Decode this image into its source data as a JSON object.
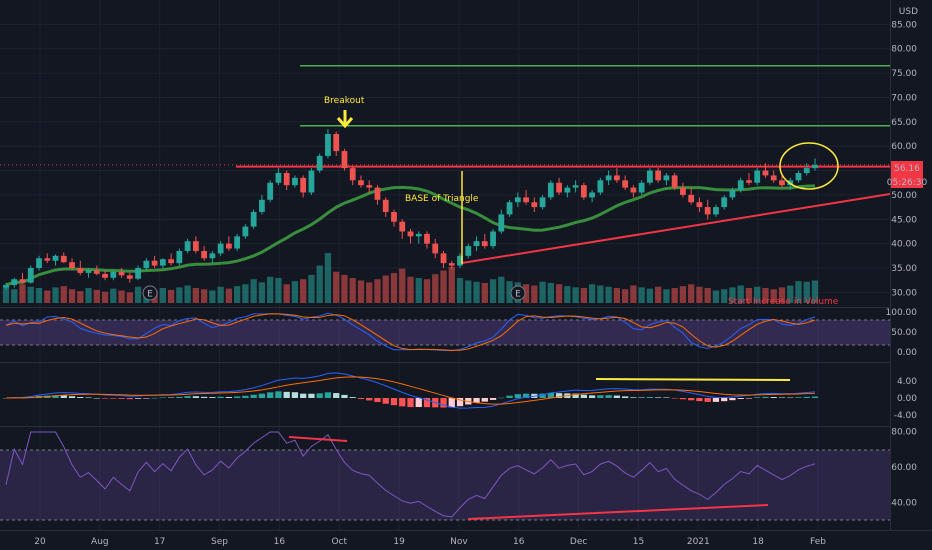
{
  "chart_data": {
    "type": "candlestick",
    "currency_label": "USD",
    "price_tag": "56.16",
    "countdown_tag": "05:26:30",
    "main_ylim": [
      27,
      90
    ],
    "price_ticks": [
      "85.00",
      "80.00",
      "75.00",
      "70.00",
      "65.00",
      "60.00",
      "55.00",
      "50.00",
      "45.00",
      "40.00",
      "35.00",
      "30.00"
    ],
    "stoch_ticks": [
      "100.00",
      "50.00",
      "0.00"
    ],
    "macd_ticks": [
      "4.00",
      "0.00",
      "-4.00"
    ],
    "rsi_ticks": [
      "80.00",
      "60.00",
      "40.00"
    ],
    "x_ticks": [
      "20",
      "Aug",
      "17",
      "Sep",
      "16",
      "Oct",
      "19",
      "Nov",
      "16",
      "Dec",
      "15",
      "2021",
      "18",
      "Feb"
    ],
    "annotations": {
      "breakout": "Breakout",
      "base": "BASE of Triangle",
      "volume": "Start Increase in Volume"
    },
    "earnings_marker": "E",
    "horizontal_levels": [
      {
        "label": "resistance-upper",
        "value": 76.5,
        "color": "#4caf50"
      },
      {
        "label": "resistance-breakout",
        "value": 64.2,
        "color": "#4caf50"
      },
      {
        "label": "resistance-triangle",
        "value": 55.8,
        "color": "#f23645"
      }
    ],
    "candles": [
      {
        "o": 31.0,
        "h": 32.0,
        "l": 30.5,
        "c": 31.5
      },
      {
        "o": 31.5,
        "h": 33.0,
        "l": 31.0,
        "c": 32.7
      },
      {
        "o": 32.7,
        "h": 34.0,
        "l": 32.0,
        "c": 32.0
      },
      {
        "o": 32.0,
        "h": 35.5,
        "l": 31.8,
        "c": 35.0
      },
      {
        "o": 35.0,
        "h": 37.5,
        "l": 34.5,
        "c": 37.0
      },
      {
        "o": 37.0,
        "h": 38.0,
        "l": 36.0,
        "c": 36.5
      },
      {
        "o": 36.5,
        "h": 37.8,
        "l": 35.5,
        "c": 37.5
      },
      {
        "o": 37.5,
        "h": 38.2,
        "l": 36.0,
        "c": 36.2
      },
      {
        "o": 36.2,
        "h": 37.0,
        "l": 34.5,
        "c": 35.0
      },
      {
        "o": 35.0,
        "h": 36.5,
        "l": 33.5,
        "c": 34.0
      },
      {
        "o": 34.0,
        "h": 35.0,
        "l": 33.0,
        "c": 34.5
      },
      {
        "o": 34.5,
        "h": 35.5,
        "l": 33.5,
        "c": 33.8
      },
      {
        "o": 33.8,
        "h": 34.5,
        "l": 32.5,
        "c": 33.0
      },
      {
        "o": 33.0,
        "h": 34.5,
        "l": 32.5,
        "c": 34.2
      },
      {
        "o": 34.2,
        "h": 35.0,
        "l": 33.0,
        "c": 33.5
      },
      {
        "o": 33.5,
        "h": 34.0,
        "l": 32.0,
        "c": 32.8
      },
      {
        "o": 32.8,
        "h": 35.5,
        "l": 32.5,
        "c": 35.0
      },
      {
        "o": 35.0,
        "h": 37.0,
        "l": 34.5,
        "c": 36.5
      },
      {
        "o": 36.5,
        "h": 37.5,
        "l": 35.0,
        "c": 35.5
      },
      {
        "o": 35.5,
        "h": 37.0,
        "l": 35.0,
        "c": 36.8
      },
      {
        "o": 36.8,
        "h": 38.0,
        "l": 35.5,
        "c": 36.0
      },
      {
        "o": 36.0,
        "h": 39.0,
        "l": 35.5,
        "c": 38.5
      },
      {
        "o": 38.5,
        "h": 41.0,
        "l": 38.0,
        "c": 40.5
      },
      {
        "o": 40.5,
        "h": 41.5,
        "l": 38.0,
        "c": 38.5
      },
      {
        "o": 38.5,
        "h": 39.5,
        "l": 36.5,
        "c": 37.0
      },
      {
        "o": 37.0,
        "h": 38.5,
        "l": 36.0,
        "c": 38.0
      },
      {
        "o": 38.0,
        "h": 40.5,
        "l": 37.5,
        "c": 40.0
      },
      {
        "o": 40.0,
        "h": 41.5,
        "l": 38.5,
        "c": 39.0
      },
      {
        "o": 39.0,
        "h": 42.0,
        "l": 38.5,
        "c": 41.5
      },
      {
        "o": 41.5,
        "h": 44.0,
        "l": 41.0,
        "c": 43.5
      },
      {
        "o": 43.5,
        "h": 47.0,
        "l": 43.0,
        "c": 46.5
      },
      {
        "o": 46.5,
        "h": 50.0,
        "l": 46.0,
        "c": 49.0
      },
      {
        "o": 49.0,
        "h": 53.0,
        "l": 48.5,
        "c": 52.5
      },
      {
        "o": 52.5,
        "h": 55.5,
        "l": 52.0,
        "c": 54.5
      },
      {
        "o": 54.5,
        "h": 55.0,
        "l": 51.0,
        "c": 52.0
      },
      {
        "o": 52.0,
        "h": 54.0,
        "l": 51.5,
        "c": 53.5
      },
      {
        "o": 53.5,
        "h": 54.0,
        "l": 49.5,
        "c": 50.5
      },
      {
        "o": 50.5,
        "h": 55.5,
        "l": 50.0,
        "c": 55.0
      },
      {
        "o": 55.0,
        "h": 58.5,
        "l": 54.5,
        "c": 58.0
      },
      {
        "o": 58.0,
        "h": 63.5,
        "l": 57.5,
        "c": 62.5
      },
      {
        "o": 62.5,
        "h": 63.0,
        "l": 58.0,
        "c": 59.0
      },
      {
        "o": 59.0,
        "h": 59.5,
        "l": 55.0,
        "c": 55.5
      },
      {
        "o": 55.5,
        "h": 56.0,
        "l": 52.0,
        "c": 53.0
      },
      {
        "o": 53.0,
        "h": 54.0,
        "l": 51.5,
        "c": 52.0
      },
      {
        "o": 52.0,
        "h": 53.0,
        "l": 50.5,
        "c": 51.5
      },
      {
        "o": 51.5,
        "h": 52.0,
        "l": 48.0,
        "c": 49.0
      },
      {
        "o": 49.0,
        "h": 49.5,
        "l": 45.5,
        "c": 46.5
      },
      {
        "o": 46.5,
        "h": 47.0,
        "l": 43.5,
        "c": 44.5
      },
      {
        "o": 44.5,
        "h": 45.0,
        "l": 41.0,
        "c": 42.5
      },
      {
        "o": 42.5,
        "h": 43.0,
        "l": 40.0,
        "c": 41.5
      },
      {
        "o": 41.5,
        "h": 42.5,
        "l": 40.0,
        "c": 42.0
      },
      {
        "o": 42.0,
        "h": 42.5,
        "l": 39.0,
        "c": 40.0
      },
      {
        "o": 40.0,
        "h": 41.0,
        "l": 37.0,
        "c": 38.0
      },
      {
        "o": 38.0,
        "h": 38.5,
        "l": 35.0,
        "c": 36.0
      },
      {
        "o": 36.0,
        "h": 36.5,
        "l": 34.8,
        "c": 35.5
      },
      {
        "o": 35.5,
        "h": 38.0,
        "l": 35.0,
        "c": 37.5
      },
      {
        "o": 37.5,
        "h": 40.0,
        "l": 37.0,
        "c": 39.5
      },
      {
        "o": 39.5,
        "h": 41.5,
        "l": 38.5,
        "c": 40.5
      },
      {
        "o": 40.5,
        "h": 42.0,
        "l": 39.0,
        "c": 39.5
      },
      {
        "o": 39.5,
        "h": 43.0,
        "l": 39.0,
        "c": 42.5
      },
      {
        "o": 42.5,
        "h": 47.0,
        "l": 42.0,
        "c": 46.0
      },
      {
        "o": 46.0,
        "h": 49.0,
        "l": 45.5,
        "c": 48.5
      },
      {
        "o": 48.5,
        "h": 50.5,
        "l": 47.5,
        "c": 49.5
      },
      {
        "o": 49.5,
        "h": 51.0,
        "l": 48.0,
        "c": 48.5
      },
      {
        "o": 48.5,
        "h": 49.5,
        "l": 46.5,
        "c": 47.5
      },
      {
        "o": 47.5,
        "h": 50.0,
        "l": 47.0,
        "c": 49.5
      },
      {
        "o": 49.5,
        "h": 53.0,
        "l": 49.0,
        "c": 52.5
      },
      {
        "o": 52.5,
        "h": 53.5,
        "l": 50.0,
        "c": 50.5
      },
      {
        "o": 50.5,
        "h": 52.0,
        "l": 49.5,
        "c": 51.5
      },
      {
        "o": 51.5,
        "h": 53.0,
        "l": 50.5,
        "c": 52.0
      },
      {
        "o": 52.0,
        "h": 52.5,
        "l": 49.0,
        "c": 49.5
      },
      {
        "o": 49.5,
        "h": 51.0,
        "l": 48.5,
        "c": 50.5
      },
      {
        "o": 50.5,
        "h": 53.5,
        "l": 50.0,
        "c": 53.0
      },
      {
        "o": 53.0,
        "h": 55.0,
        "l": 52.0,
        "c": 54.0
      },
      {
        "o": 54.0,
        "h": 55.5,
        "l": 52.5,
        "c": 53.0
      },
      {
        "o": 53.0,
        "h": 54.0,
        "l": 51.0,
        "c": 51.5
      },
      {
        "o": 51.5,
        "h": 52.0,
        "l": 49.5,
        "c": 50.5
      },
      {
        "o": 50.5,
        "h": 53.0,
        "l": 50.0,
        "c": 52.5
      },
      {
        "o": 52.5,
        "h": 55.5,
        "l": 52.0,
        "c": 55.0
      },
      {
        "o": 55.0,
        "h": 55.5,
        "l": 52.5,
        "c": 53.0
      },
      {
        "o": 53.0,
        "h": 54.5,
        "l": 52.0,
        "c": 54.0
      },
      {
        "o": 54.0,
        "h": 54.5,
        "l": 51.0,
        "c": 51.5
      },
      {
        "o": 51.5,
        "h": 52.5,
        "l": 49.5,
        "c": 50.0
      },
      {
        "o": 50.0,
        "h": 51.5,
        "l": 48.0,
        "c": 48.5
      },
      {
        "o": 48.5,
        "h": 49.5,
        "l": 46.5,
        "c": 47.5
      },
      {
        "o": 47.5,
        "h": 49.0,
        "l": 45.0,
        "c": 46.0
      },
      {
        "o": 46.0,
        "h": 48.0,
        "l": 45.5,
        "c": 47.5
      },
      {
        "o": 47.5,
        "h": 50.0,
        "l": 47.0,
        "c": 49.5
      },
      {
        "o": 49.5,
        "h": 51.5,
        "l": 49.0,
        "c": 51.0
      },
      {
        "o": 51.0,
        "h": 53.5,
        "l": 50.5,
        "c": 53.0
      },
      {
        "o": 53.0,
        "h": 54.5,
        "l": 52.0,
        "c": 52.5
      },
      {
        "o": 52.5,
        "h": 55.5,
        "l": 52.0,
        "c": 55.0
      },
      {
        "o": 55.0,
        "h": 56.5,
        "l": 53.5,
        "c": 54.0
      },
      {
        "o": 54.0,
        "h": 55.0,
        "l": 52.5,
        "c": 53.0
      },
      {
        "o": 53.0,
        "h": 54.0,
        "l": 51.5,
        "c": 52.0
      },
      {
        "o": 52.0,
        "h": 53.5,
        "l": 51.0,
        "c": 53.0
      },
      {
        "o": 53.0,
        "h": 55.0,
        "l": 52.5,
        "c": 54.5
      },
      {
        "o": 54.5,
        "h": 56.5,
        "l": 54.0,
        "c": 55.5
      },
      {
        "o": 55.5,
        "h": 57.5,
        "l": 55.0,
        "c": 56.16
      }
    ],
    "volume": [
      28,
      22,
      30,
      26,
      24,
      20,
      25,
      27,
      22,
      19,
      24,
      21,
      18,
      23,
      20,
      17,
      26,
      22,
      20,
      24,
      21,
      25,
      28,
      24,
      22,
      20,
      26,
      23,
      27,
      30,
      38,
      33,
      42,
      40,
      30,
      35,
      38,
      45,
      60,
      80,
      50,
      45,
      40,
      36,
      33,
      38,
      44,
      48,
      55,
      42,
      40,
      38,
      46,
      52,
      58,
      40,
      36,
      34,
      32,
      38,
      42,
      35,
      33,
      30,
      28,
      34,
      32,
      30,
      27,
      25,
      24,
      30,
      28,
      26,
      24,
      22,
      28,
      25,
      23,
      26,
      22,
      24,
      27,
      30,
      26,
      24,
      20,
      22,
      25,
      28,
      24,
      26,
      24,
      22,
      25,
      28,
      35,
      34,
      36
    ]
  }
}
